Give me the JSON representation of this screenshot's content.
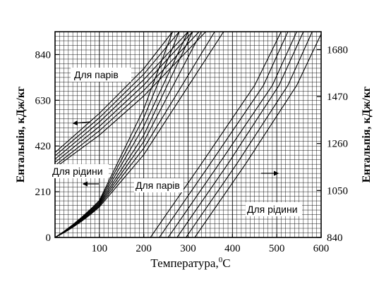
{
  "chart_data": {
    "type": "line",
    "title": "",
    "xlabel": "Температура,",
    "xlabel_sup": "0",
    "xlabel_unit": "C",
    "ylabel_left": "Ентальпія, кДж/кг",
    "ylabel_right": "Ентальпія, кДж/кг",
    "xlim": [
      0,
      600
    ],
    "ylim_left": [
      0,
      945
    ],
    "ylim_right": [
      840,
      1760
    ],
    "x_ticks": [
      100,
      200,
      300,
      400,
      500,
      600
    ],
    "y_left_ticks": [
      0,
      210,
      420,
      630,
      840
    ],
    "y_right_ticks": [
      840,
      1050,
      1260,
      1470,
      1680
    ],
    "grid": true,
    "annotations": [
      {
        "id": "vapour-left",
        "text": "Для парів"
      },
      {
        "id": "liquid-left",
        "text": "Для рідини"
      },
      {
        "id": "vapour-mid",
        "text": "Для парів"
      },
      {
        "id": "liquid-right",
        "text": "Для рідини"
      }
    ],
    "series": [
      {
        "axis": "left",
        "group": "vapour-left",
        "x": [
          0,
          100,
          200,
          265
        ],
        "y": [
          390,
          570,
          775,
          945
        ]
      },
      {
        "axis": "left",
        "group": "vapour-left",
        "x": [
          0,
          100,
          200,
          280
        ],
        "y": [
          375,
          550,
          750,
          945
        ]
      },
      {
        "axis": "left",
        "group": "vapour-left",
        "x": [
          0,
          100,
          200,
          300
        ],
        "y": [
          360,
          530,
          725,
          945
        ]
      },
      {
        "axis": "left",
        "group": "vapour-left",
        "x": [
          0,
          100,
          200,
          310
        ],
        "y": [
          345,
          510,
          700,
          945
        ]
      },
      {
        "axis": "left",
        "group": "vapour-left",
        "x": [
          0,
          100,
          200,
          325
        ],
        "y": [
          330,
          490,
          675,
          945
        ]
      },
      {
        "axis": "left",
        "group": "vapour-left",
        "x": [
          0,
          100,
          200,
          340
        ],
        "y": [
          320,
          470,
          650,
          945
        ]
      },
      {
        "axis": "left",
        "group": "liquid-left",
        "x": [
          0,
          100,
          200,
          265
        ],
        "y": [
          0,
          170,
          590,
          945
        ]
      },
      {
        "axis": "left",
        "group": "liquid-left",
        "x": [
          0,
          100,
          200,
          280
        ],
        "y": [
          0,
          165,
          550,
          945
        ]
      },
      {
        "axis": "left",
        "group": "liquid-left",
        "x": [
          0,
          100,
          200,
          300
        ],
        "y": [
          0,
          160,
          510,
          945
        ]
      },
      {
        "axis": "left",
        "group": "liquid-left",
        "x": [
          0,
          100,
          200,
          310
        ],
        "y": [
          0,
          155,
          470,
          945
        ]
      },
      {
        "axis": "left",
        "group": "liquid-left",
        "x": [
          0,
          100,
          200,
          330
        ],
        "y": [
          0,
          150,
          440,
          945
        ]
      },
      {
        "axis": "left",
        "group": "liquid-left",
        "x": [
          0,
          100,
          200,
          360
        ],
        "y": [
          0,
          145,
          410,
          945
        ]
      },
      {
        "axis": "left",
        "group": "liquid-left",
        "x": [
          0,
          100,
          200,
          380
        ],
        "y": [
          0,
          140,
          380,
          945
        ]
      },
      {
        "axis": "right",
        "group": "liquid-right",
        "x": [
          215,
          330,
          450,
          510
        ],
        "y": [
          840,
          1170,
          1520,
          1760
        ]
      },
      {
        "axis": "right",
        "group": "liquid-right",
        "x": [
          235,
          350,
          470,
          525
        ],
        "y": [
          840,
          1170,
          1520,
          1760
        ]
      },
      {
        "axis": "right",
        "group": "liquid-right",
        "x": [
          255,
          370,
          490,
          545
        ],
        "y": [
          840,
          1170,
          1520,
          1760
        ]
      },
      {
        "axis": "right",
        "group": "liquid-right",
        "x": [
          275,
          390,
          505,
          560
        ],
        "y": [
          840,
          1170,
          1520,
          1760
        ]
      },
      {
        "axis": "right",
        "group": "liquid-right",
        "x": [
          295,
          410,
          525,
          580
        ],
        "y": [
          840,
          1170,
          1520,
          1760
        ]
      },
      {
        "axis": "right",
        "group": "liquid-right",
        "x": [
          315,
          430,
          545,
          600
        ],
        "y": [
          840,
          1170,
          1520,
          1750
        ]
      }
    ]
  }
}
